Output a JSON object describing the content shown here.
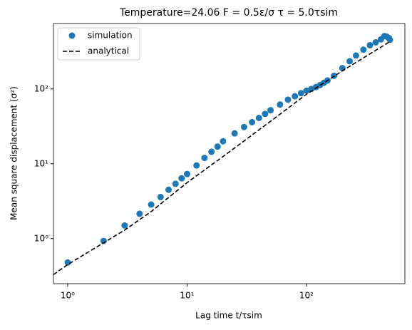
{
  "chart_data": {
    "type": "scatter-line",
    "title": "Temperature=24.06  F = 0.5ε/σ  τ = 5.0τsim",
    "x_label": "Lag time t/τsim",
    "y_label": "Mean square displacement (σ²)",
    "log_x": true,
    "log_y": true,
    "xlim": [
      0.76,
      667
    ],
    "ylim": [
      0.25,
      750
    ],
    "xticks": [
      {
        "value": 1,
        "label": "10⁰"
      },
      {
        "value": 10,
        "label": "10¹"
      },
      {
        "value": 100,
        "label": "10²"
      }
    ],
    "yticks": [
      {
        "value": 1,
        "label": "10⁰"
      },
      {
        "value": 10,
        "label": "10¹"
      },
      {
        "value": 100,
        "label": "10²"
      }
    ],
    "legend": "upper left",
    "series": [
      {
        "name": "simulation",
        "color": "#1f77b4",
        "kind": "points",
        "x": [
          1,
          2,
          3,
          4,
          5,
          6,
          7,
          8,
          9,
          10,
          12,
          14,
          16,
          18,
          20,
          25,
          30,
          35,
          40,
          45,
          50,
          60,
          70,
          80,
          90,
          100,
          110,
          120,
          130,
          140,
          150,
          170,
          200,
          230,
          260,
          300,
          340,
          380,
          420,
          450,
          470,
          490,
          500
        ],
        "values": [
          0.48,
          0.93,
          1.5,
          2.15,
          2.85,
          3.6,
          4.5,
          5.4,
          6.4,
          7.3,
          9.5,
          12,
          14.5,
          17,
          20,
          25.5,
          31,
          36,
          41,
          46.5,
          52,
          62,
          72,
          80,
          88,
          95,
          100,
          106,
          113,
          121,
          130,
          150,
          190,
          235,
          280,
          335,
          385,
          420,
          460,
          510,
          500,
          480,
          455
        ]
      },
      {
        "name": "analytical",
        "color": "#000000",
        "kind": "dashed",
        "x": [
          0.76,
          1,
          2,
          3,
          5,
          10,
          20,
          50,
          100,
          200,
          500
        ],
        "values": [
          0.33,
          0.45,
          0.88,
          1.3,
          2.3,
          5.6,
          12.5,
          37,
          85,
          175,
          430
        ]
      }
    ]
  }
}
